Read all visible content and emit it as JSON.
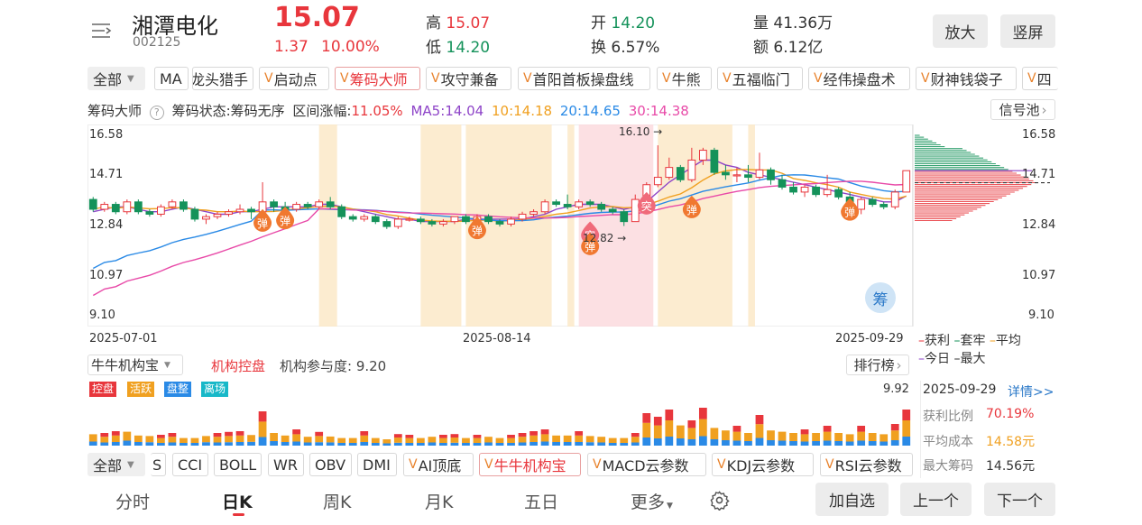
{
  "stock": {
    "name": "湘潭电化",
    "code": "002125",
    "price": "15.07",
    "change": "1.37",
    "change_pct": "10.00%"
  },
  "quote": {
    "high_label": "高",
    "high": "15.07",
    "low_label": "低",
    "low": "14.20",
    "open_label": "开",
    "open": "14.20",
    "turnover_label": "换",
    "turnover": "6.57%",
    "vol_label": "量",
    "vol": "41.36万",
    "amt_label": "额",
    "amt": "6.12亿"
  },
  "header_buttons": {
    "zoom": "放大",
    "portrait": "竖屏"
  },
  "indicator_bar": {
    "all": "全部",
    "items": [
      "MA",
      "龙头猎手",
      "启动点",
      "筹码大师",
      "攻守兼备",
      "首阳首板操盘线",
      "牛熊",
      "五福临门",
      "经伟操盘术",
      "财神钱袋子",
      "四"
    ]
  },
  "chip_panel": {
    "title": "筹码大师",
    "status": "筹码状态:筹码无序",
    "range_label": "区间涨幅:",
    "range_value": "11.05%",
    "ma5": "MA5:14.04",
    "ma10": "10:14.18",
    "ma20": "20:14.65",
    "ma30": "30:14.38",
    "signal_btn": "信号池"
  },
  "price_axis": [
    "16.58",
    "14.71",
    "12.84",
    "10.97",
    "9.10"
  ],
  "dates": [
    "2025-07-01",
    "2025-08-14",
    "2025-09-29"
  ],
  "annotations": {
    "high": "16.10",
    "low": "12.82",
    "tan": "弹",
    "tu": "突",
    "chou": "筹"
  },
  "legend": {
    "profit": "获利",
    "trapped": "套牢",
    "avg": "平均",
    "today": "今日",
    "max": "最大"
  },
  "inst_panel": {
    "select": "牛牛机构宝",
    "control": "机构控盘",
    "participation": "机构参与度: 9.20",
    "rank_btn": "排行榜",
    "tags": [
      "控盘",
      "活跃",
      "盘整",
      "离场"
    ],
    "max_value": "9.92"
  },
  "chip_info": {
    "date": "2025-09-29",
    "detail": "详情>>",
    "profit_ratio_label": "获利比例",
    "profit_ratio": "70.19%",
    "avg_cost_label": "平均成本",
    "avg_cost": "14.58元",
    "max_chip_label": "最大筹码",
    "max_chip": "14.56元"
  },
  "indicator_bar2": {
    "all": "全部",
    "items": [
      "S",
      "CCI",
      "BOLL",
      "WR",
      "OBV",
      "DMI",
      "AI顶底",
      "牛牛机构宝",
      "MACD云参数",
      "KDJ云参数",
      "RSI云参数"
    ]
  },
  "bottom_tabs": [
    "分时",
    "日K",
    "周K",
    "月K",
    "五日",
    "更多"
  ],
  "bottom_buttons": {
    "watch": "加自选",
    "prev": "上一个",
    "next": "下一个"
  },
  "colors": {
    "up": "#e8363c",
    "down": "#14925a",
    "ma5": "#8e44c8",
    "ma10": "#f0a020",
    "ma20": "#2a8ae6",
    "ma30": "#e84aa8"
  },
  "chart_data": {
    "type": "candlestick",
    "ylim": [
      9.1,
      16.58
    ],
    "candles": [
      [
        13.9,
        13.5,
        14.0,
        13.4
      ],
      [
        13.5,
        13.7,
        13.8,
        13.4
      ],
      [
        13.7,
        13.4,
        13.8,
        13.3
      ],
      [
        13.4,
        13.8,
        13.9,
        13.3
      ],
      [
        13.8,
        13.4,
        13.9,
        13.3
      ],
      [
        13.4,
        13.3,
        13.5,
        13.2
      ],
      [
        13.3,
        13.6,
        13.7,
        13.2
      ],
      [
        13.6,
        13.8,
        13.9,
        13.5
      ],
      [
        13.8,
        13.5,
        13.9,
        13.4
      ],
      [
        13.5,
        13.1,
        13.6,
        13.0
      ],
      [
        13.1,
        13.2,
        13.3,
        12.9
      ],
      [
        13.2,
        13.3,
        13.4,
        13.1
      ],
      [
        13.3,
        13.4,
        13.5,
        13.2
      ],
      [
        13.4,
        13.5,
        13.7,
        13.3
      ],
      [
        13.5,
        13.4,
        13.6,
        13.1
      ],
      [
        13.4,
        13.8,
        14.6,
        13.3
      ],
      [
        13.8,
        13.6,
        13.9,
        13.4
      ],
      [
        13.6,
        13.5,
        13.8,
        13.3
      ],
      [
        13.5,
        13.7,
        13.8,
        13.4
      ],
      [
        13.7,
        13.6,
        13.8,
        13.5
      ],
      [
        13.6,
        13.8,
        13.9,
        13.5
      ],
      [
        13.8,
        13.6,
        14.0,
        13.5
      ],
      [
        13.6,
        13.2,
        13.7,
        13.1
      ],
      [
        13.2,
        13.1,
        13.3,
        13.0
      ],
      [
        13.1,
        13.2,
        13.3,
        13.0
      ],
      [
        13.2,
        13.0,
        13.3,
        12.9
      ],
      [
        13.0,
        12.8,
        13.1,
        12.7
      ],
      [
        12.8,
        13.1,
        13.2,
        12.7
      ],
      [
        13.1,
        13.1,
        13.2,
        13.0
      ],
      [
        13.1,
        13.0,
        13.2,
        12.9
      ],
      [
        13.0,
        12.9,
        13.1,
        12.8
      ],
      [
        12.9,
        13.0,
        13.1,
        12.8
      ],
      [
        13.0,
        13.2,
        13.2,
        12.9
      ],
      [
        13.2,
        13.0,
        13.3,
        12.9
      ],
      [
        13.0,
        13.2,
        13.3,
        12.9
      ],
      [
        13.2,
        13.0,
        13.3,
        12.9
      ],
      [
        13.0,
        12.9,
        13.1,
        12.8
      ],
      [
        12.9,
        13.1,
        13.2,
        12.8
      ],
      [
        13.1,
        13.3,
        13.4,
        13.0
      ],
      [
        13.3,
        13.4,
        13.5,
        13.2
      ],
      [
        13.4,
        13.8,
        13.9,
        13.3
      ],
      [
        13.8,
        13.7,
        13.9,
        13.6
      ],
      [
        13.7,
        13.6,
        14.1,
        13.5
      ],
      [
        13.6,
        13.8,
        13.9,
        13.5
      ],
      [
        13.8,
        13.7,
        13.9,
        13.6
      ],
      [
        13.7,
        13.5,
        13.8,
        13.4
      ],
      [
        13.5,
        13.4,
        13.6,
        13.3
      ],
      [
        13.4,
        13.0,
        13.5,
        12.82
      ],
      [
        13.0,
        13.9,
        14.1,
        13.0
      ],
      [
        13.9,
        14.5,
        14.6,
        13.8
      ],
      [
        14.5,
        14.8,
        16.1,
        14.4
      ],
      [
        14.8,
        15.2,
        15.6,
        14.7
      ],
      [
        15.2,
        14.7,
        15.3,
        14.6
      ],
      [
        14.7,
        15.5,
        16.0,
        14.6
      ],
      [
        15.5,
        15.9,
        16.0,
        15.3
      ],
      [
        15.9,
        15.0,
        16.0,
        14.9
      ],
      [
        15.0,
        14.9,
        15.3,
        14.7
      ],
      [
        14.9,
        14.9,
        15.2,
        14.6
      ],
      [
        14.9,
        14.8,
        15.3,
        14.6
      ],
      [
        14.8,
        15.1,
        15.8,
        14.7
      ],
      [
        15.1,
        14.7,
        15.2,
        14.5
      ],
      [
        14.7,
        14.4,
        14.9,
        14.3
      ],
      [
        14.4,
        14.2,
        14.6,
        14.1
      ],
      [
        14.2,
        14.4,
        14.5,
        14.0
      ],
      [
        14.4,
        14.1,
        14.5,
        14.0
      ],
      [
        14.1,
        14.3,
        14.9,
        14.0
      ],
      [
        14.3,
        14.0,
        14.4,
        13.9
      ],
      [
        14.0,
        13.5,
        14.2,
        13.4
      ],
      [
        13.5,
        13.9,
        14.0,
        13.3
      ],
      [
        13.9,
        13.7,
        14.0,
        13.6
      ],
      [
        13.7,
        13.6,
        13.8,
        13.5
      ],
      [
        13.6,
        14.2,
        14.3,
        13.5
      ],
      [
        14.2,
        15.07,
        15.07,
        14.2
      ]
    ],
    "ma5": [
      13.4,
      13.5,
      13.6,
      13.6,
      13.5,
      13.4,
      13.4,
      13.5,
      13.6,
      13.5,
      13.4,
      13.3,
      13.3,
      13.4,
      13.4,
      13.5,
      13.6,
      13.6,
      13.6,
      13.6,
      13.7,
      13.7,
      13.6,
      13.5,
      13.4,
      13.3,
      13.2,
      13.1,
      13.1,
      13.0,
      13.0,
      13.0,
      13.0,
      13.1,
      13.1,
      13.1,
      13.1,
      13.1,
      13.1,
      13.2,
      13.3,
      13.5,
      13.6,
      13.7,
      13.7,
      13.7,
      13.6,
      13.5,
      13.6,
      13.8,
      14.2,
      14.6,
      14.9,
      15.2,
      15.5,
      15.5,
      15.3,
      15.2,
      15.0,
      14.9,
      14.8,
      14.7,
      14.6,
      14.5,
      14.4,
      14.3,
      14.2,
      14.1,
      14.0,
      13.9,
      13.8,
      13.8,
      14.04
    ]
  },
  "volume": {
    "red": [
      0,
      1,
      1,
      0,
      0,
      0,
      1,
      1,
      0,
      0,
      0,
      1,
      1,
      1,
      0,
      1,
      0,
      0,
      1,
      0,
      1,
      0,
      0,
      0,
      1,
      0,
      0,
      1,
      1,
      0,
      0,
      1,
      1,
      0,
      1,
      0,
      0,
      1,
      1,
      1,
      1,
      0,
      0,
      1,
      0,
      0,
      0,
      0,
      1,
      1,
      1,
      1,
      0,
      1,
      1,
      0,
      0,
      1,
      0,
      1,
      0,
      0,
      0,
      1,
      0,
      1,
      0,
      0,
      1,
      0,
      0,
      1,
      1
    ],
    "h": [
      0.45,
      0.35,
      0.4,
      0.55,
      0.4,
      0.38,
      0.3,
      0.35,
      0.3,
      0.3,
      0.38,
      0.35,
      0.38,
      0.4,
      0.42,
      0.95,
      0.5,
      0.4,
      0.45,
      0.35,
      0.38,
      0.36,
      0.3,
      0.3,
      0.4,
      0.3,
      0.25,
      0.32,
      0.3,
      0.3,
      0.35,
      0.3,
      0.32,
      0.3,
      0.3,
      0.35,
      0.3,
      0.3,
      0.35,
      0.4,
      0.45,
      0.4,
      0.4,
      0.4,
      0.38,
      0.35,
      0.3,
      0.3,
      0.35,
      0.9,
      0.8,
      1.0,
      0.8,
      0.7,
      1.05,
      0.7,
      0.6,
      0.55,
      0.5,
      0.85,
      0.6,
      0.55,
      0.5,
      0.45,
      0.5,
      0.55,
      0.5,
      0.45,
      0.55,
      0.5,
      0.45,
      0.6,
      1.0
    ]
  }
}
